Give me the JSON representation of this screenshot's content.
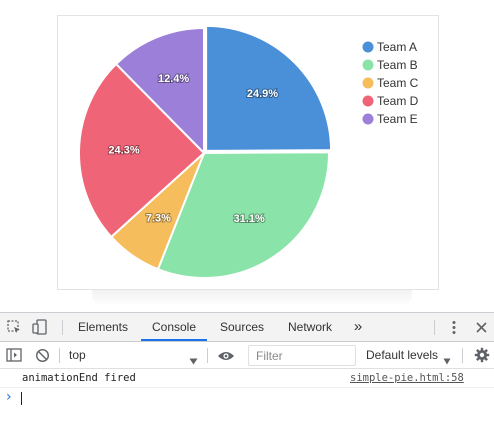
{
  "chart_data": {
    "type": "pie",
    "categories": [
      "Team A",
      "Team B",
      "Team C",
      "Team D",
      "Team E"
    ],
    "values": [
      24.9,
      31.1,
      7.3,
      24.3,
      12.4
    ],
    "labels": [
      "24.9%",
      "31.1%",
      "7.3%",
      "24.3%",
      "12.4%"
    ],
    "colors": [
      "#4a90d9",
      "#8ae3a8",
      "#f5bd5b",
      "#ef6577",
      "#9b7fd9"
    ],
    "legend_position": "top-right",
    "exploded_slice": "Team A"
  },
  "devtools": {
    "tabs": [
      {
        "label": "Elements"
      },
      {
        "label": "Console"
      },
      {
        "label": "Sources"
      },
      {
        "label": "Network"
      }
    ],
    "more_tabs_label": "»",
    "context": "top",
    "filter_placeholder": "Filter",
    "levels_label": "Default levels",
    "log_message": "animationEnd fired",
    "log_source": "simple-pie.html:58",
    "prompt_symbol": "›",
    "icons": [
      "inspect-element-icon",
      "device-toolbar-icon",
      "more-vert-icon",
      "close-icon",
      "sidebar-toggle-icon",
      "clear-console-icon",
      "dropdown-arrow-icon",
      "eye-icon",
      "settings-gear-icon"
    ]
  }
}
